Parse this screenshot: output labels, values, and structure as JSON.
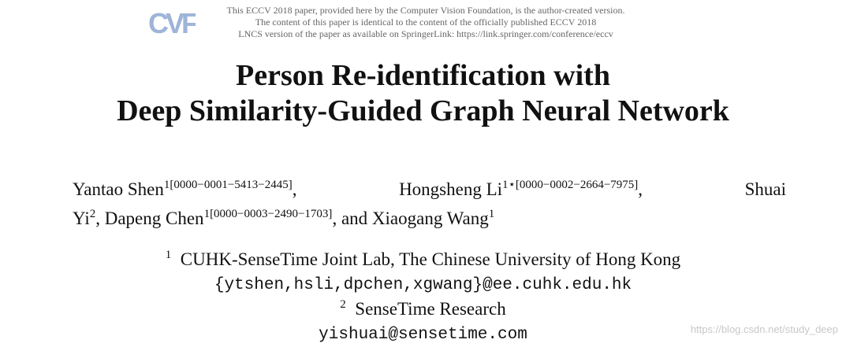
{
  "header": {
    "logo_text": "CVF",
    "notice_lines": [
      "This ECCV 2018 paper, provided here by the Computer Vision Foundation, is the author-created version.",
      "The content of this paper is identical to the content of the officially published ECCV 2018",
      "LNCS version of the paper as available on SpringerLink: https://link.springer.com/conference/eccv"
    ],
    "logo_color": "#9fb4d8"
  },
  "title": {
    "line1": "Person Re-identification with",
    "line2": "Deep Similarity-Guided Graph Neural Network"
  },
  "authors": {
    "a1": {
      "name": "Yantao Shen",
      "sup": "1[0000−0001−5413−2445]"
    },
    "a2": {
      "name": "Hongsheng Li",
      "sup": "1⋆[0000−0002−2664−7975]"
    },
    "a3_part1": "Shuai",
    "a3_part2": "Yi",
    "a3_sup": "2",
    "a4": {
      "name": "Dapeng Chen",
      "sup": "1[0000−0003−2490−1703]"
    },
    "a5": {
      "name": "Xiaogang Wang",
      "sup": "1"
    },
    "and": "and"
  },
  "affiliations": {
    "aff1_num": "1",
    "aff1_text": "CUHK-SenseTime Joint Lab, The Chinese University of Hong Kong",
    "aff1_email": "{ytshen,hsli,dpchen,xgwang}@ee.cuhk.edu.hk",
    "aff2_num": "2",
    "aff2_text": "SenseTime Research",
    "aff2_email": "yishuai@sensetime.com"
  },
  "watermark": "https://blog.csdn.net/study_deep"
}
